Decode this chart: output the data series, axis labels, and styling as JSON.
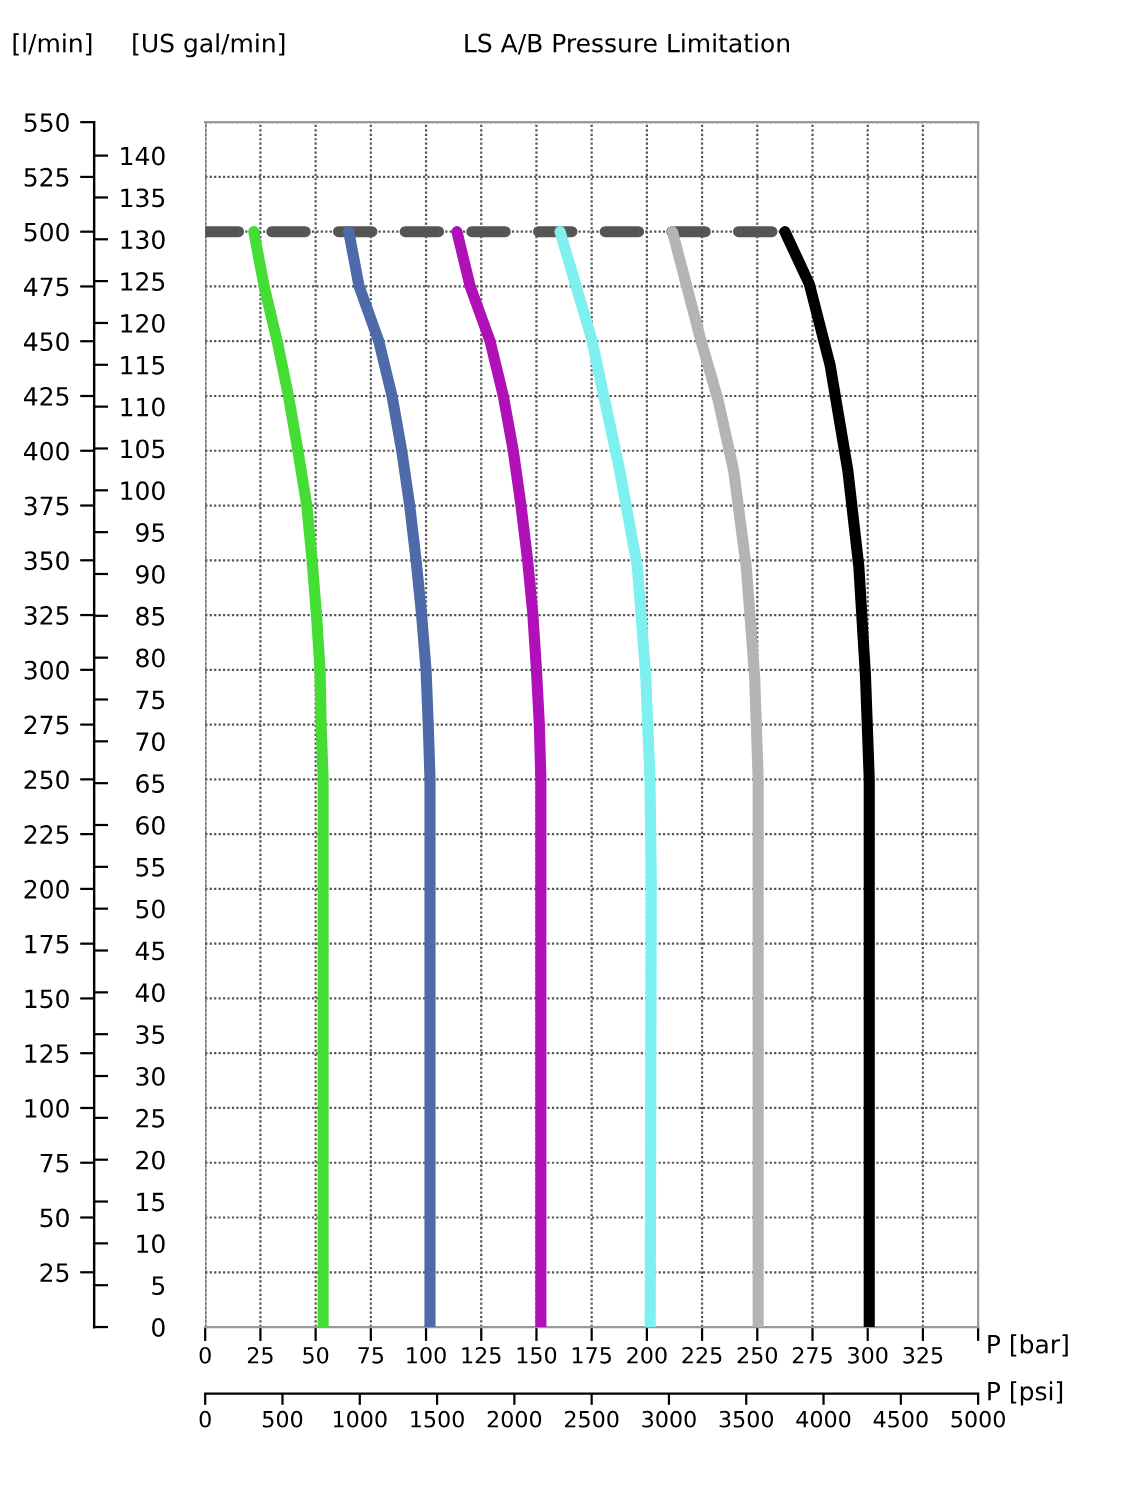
{
  "chart_data": {
    "type": "line",
    "title": "LS A/B Pressure Limitation",
    "ylabel": "[l/min]",
    "y2label": "[US gal/min]",
    "xlabel": "P [bar]",
    "x2label": "P [psi]",
    "xlim": [
      0,
      350
    ],
    "xticks": [
      0,
      25,
      50,
      75,
      100,
      125,
      150,
      175,
      200,
      225,
      250,
      275,
      300,
      325,
      {
        "value": 350,
        "label": null
      }
    ],
    "x2lim": [
      0,
      5000
    ],
    "x2ticks": [
      0,
      500,
      1000,
      1500,
      2000,
      2500,
      3000,
      3500,
      4000,
      4500,
      5000
    ],
    "ylim": [
      0,
      550
    ],
    "yticks": [
      25,
      50,
      75,
      100,
      125,
      150,
      175,
      200,
      225,
      250,
      275,
      300,
      325,
      350,
      375,
      400,
      425,
      450,
      475,
      500,
      525,
      550
    ],
    "y2lim": [
      0,
      144
    ],
    "y2ticks": [
      0,
      5,
      10,
      15,
      20,
      25,
      30,
      35,
      40,
      45,
      50,
      55,
      60,
      65,
      70,
      75,
      80,
      85,
      90,
      95,
      100,
      105,
      110,
      115,
      120,
      125,
      130,
      135,
      140
    ],
    "grid": true,
    "marker": "none",
    "series": [
      {
        "color": "#555555",
        "line_style": "dashed",
        "x": [
          0,
          262.5
        ],
        "values": [
          500,
          500
        ]
      },
      {
        "color": "#44dd33",
        "x": [
          53.4,
          53.4,
          53.4,
          52.5,
          52,
          50.4,
          48.4,
          46,
          42,
          37.7,
          32.6,
          26.7,
          22
        ],
        "values": [
          0,
          200,
          250,
          275,
          300,
          325,
          350,
          375,
          400,
          425,
          450,
          475,
          500
        ]
      },
      {
        "color": "#4f6aa8",
        "x": [
          101.8,
          101.8,
          101.8,
          101,
          100,
          98,
          95.5,
          92.6,
          89,
          84.6,
          78.6,
          69.7,
          65
        ],
        "values": [
          0,
          200,
          250,
          275,
          300,
          325,
          350,
          375,
          400,
          425,
          450,
          475,
          500
        ]
      },
      {
        "color": "#b010b8",
        "x": [
          152,
          152,
          152,
          151.3,
          150,
          148.4,
          146,
          143,
          139.5,
          135,
          129,
          120,
          114
        ],
        "values": [
          0,
          200,
          250,
          275,
          300,
          325,
          350,
          375,
          400,
          425,
          450,
          475,
          500
        ]
      },
      {
        "color": "#7ff0f0",
        "x": [
          201.5,
          202,
          201.4,
          199.5,
          195.7,
          187.7,
          175,
          160.7
        ],
        "values": [
          0,
          203,
          250,
          297,
          347,
          391,
          451,
          500
        ]
      },
      {
        "color": "#b4b4b4",
        "x": [
          250.4,
          250.4,
          248.8,
          245,
          239.3,
          232.3,
          224.3,
          211.6
        ],
        "values": [
          0,
          250,
          297,
          347,
          391,
          423,
          451,
          500
        ]
      },
      {
        "color": "#000000",
        "x": [
          300.7,
          300.7,
          299,
          296,
          291,
          283,
          273.6,
          262.5
        ],
        "values": [
          0,
          250,
          297,
          347,
          391,
          439,
          476,
          500
        ]
      }
    ]
  }
}
